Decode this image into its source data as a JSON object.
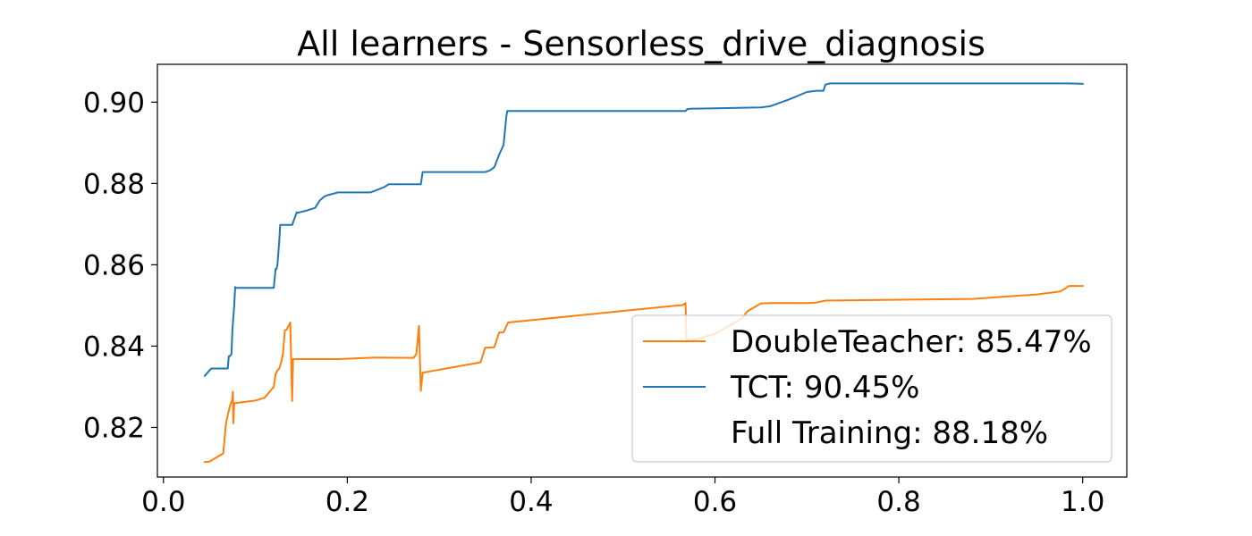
{
  "chart_data": {
    "type": "line",
    "title": "All learners - Sensorless_drive_diagnosis",
    "xlabel": "",
    "ylabel": "",
    "xlim": [
      -0.0066,
      1.048
    ],
    "ylim": [
      0.8078,
      0.9093
    ],
    "xticks": [
      0.0,
      0.2,
      0.4,
      0.6,
      0.8,
      1.0
    ],
    "xtick_labels": [
      "0.0",
      "0.2",
      "0.4",
      "0.6",
      "0.8",
      "1.0"
    ],
    "yticks": [
      0.82,
      0.84,
      0.86,
      0.88,
      0.9
    ],
    "ytick_labels": [
      "0.82",
      "0.84",
      "0.86",
      "0.88",
      "0.90"
    ],
    "grid": false,
    "legend_position": "lower-right",
    "legend": [
      {
        "label": "DoubleTeacher: 85.47%",
        "color": "#ff7f0e",
        "has_line": true
      },
      {
        "label": "TCT: 90.45%",
        "color": "#1f77b4",
        "has_line": true
      },
      {
        "label": "Full Training: 88.18%",
        "color": "",
        "has_line": false
      }
    ],
    "series": [
      {
        "name": "DoubleTeacher",
        "color": "#ff7f0e",
        "x": [
          0.045,
          0.05,
          0.065,
          0.068,
          0.072,
          0.075,
          0.0755,
          0.076,
          0.077,
          0.078,
          0.1,
          0.11,
          0.12,
          0.122,
          0.124,
          0.126,
          0.128,
          0.13,
          0.132,
          0.134,
          0.138,
          0.14,
          0.141,
          0.142,
          0.145,
          0.15,
          0.19,
          0.23,
          0.272,
          0.275,
          0.278,
          0.28,
          0.282,
          0.283,
          0.29,
          0.345,
          0.35,
          0.36,
          0.365,
          0.37,
          0.375,
          0.56,
          0.565,
          0.568,
          0.569,
          0.57,
          0.58,
          0.6,
          0.625,
          0.63,
          0.635,
          0.64,
          0.65,
          0.66,
          0.7,
          0.71,
          0.72,
          0.88,
          0.95,
          0.975,
          0.98,
          0.985,
          1.0
        ],
        "y": [
          0.8115,
          0.8116,
          0.8136,
          0.821,
          0.825,
          0.827,
          0.8288,
          0.821,
          0.826,
          0.826,
          0.8266,
          0.8273,
          0.83,
          0.8331,
          0.834,
          0.8345,
          0.836,
          0.838,
          0.8439,
          0.844,
          0.8458,
          0.8265,
          0.8368,
          0.8368,
          0.8368,
          0.8368,
          0.8368,
          0.8372,
          0.8371,
          0.838,
          0.845,
          0.829,
          0.8335,
          0.8335,
          0.8338,
          0.836,
          0.8396,
          0.8397,
          0.8433,
          0.8434,
          0.8458,
          0.85,
          0.8501,
          0.8506,
          0.8415,
          0.8415,
          0.8417,
          0.843,
          0.8462,
          0.847,
          0.8485,
          0.8492,
          0.8505,
          0.8506,
          0.8506,
          0.8507,
          0.8512,
          0.8516,
          0.8527,
          0.8534,
          0.854,
          0.8548,
          0.8548
        ]
      },
      {
        "name": "TCT",
        "color": "#1f77b4",
        "x": [
          0.045,
          0.05,
          0.052,
          0.07,
          0.071,
          0.072,
          0.074,
          0.075,
          0.076,
          0.077,
          0.078,
          0.079,
          0.08,
          0.12,
          0.122,
          0.123,
          0.124,
          0.125,
          0.126,
          0.127,
          0.128,
          0.13,
          0.135,
          0.14,
          0.145,
          0.146,
          0.148,
          0.155,
          0.165,
          0.17,
          0.175,
          0.18,
          0.19,
          0.225,
          0.23,
          0.24,
          0.245,
          0.28,
          0.281,
          0.282,
          0.285,
          0.35,
          0.355,
          0.36,
          0.365,
          0.37,
          0.373,
          0.374,
          0.376,
          0.568,
          0.57,
          0.575,
          0.58,
          0.6,
          0.65,
          0.66,
          0.68,
          0.7,
          0.71,
          0.718,
          0.72,
          0.725,
          0.735,
          0.75,
          0.98,
          0.985,
          1.0
        ],
        "y": [
          0.8327,
          0.834,
          0.8345,
          0.8345,
          0.8375,
          0.8375,
          0.838,
          0.844,
          0.847,
          0.85,
          0.8545,
          0.8543,
          0.8543,
          0.8543,
          0.859,
          0.859,
          0.86,
          0.863,
          0.866,
          0.8698,
          0.8698,
          0.8698,
          0.8698,
          0.8698,
          0.8729,
          0.8728,
          0.8729,
          0.8733,
          0.874,
          0.8758,
          0.8768,
          0.8772,
          0.8778,
          0.8778,
          0.8782,
          0.8791,
          0.8798,
          0.8798,
          0.8813,
          0.8828,
          0.8828,
          0.8828,
          0.8832,
          0.884,
          0.887,
          0.8895,
          0.8965,
          0.8978,
          0.8978,
          0.8978,
          0.8983,
          0.8984,
          0.8984,
          0.8985,
          0.8987,
          0.899,
          0.9006,
          0.9025,
          0.9028,
          0.9028,
          0.9043,
          0.9046,
          0.9046,
          0.9046,
          0.9046,
          0.9046,
          0.9045
        ]
      }
    ]
  }
}
